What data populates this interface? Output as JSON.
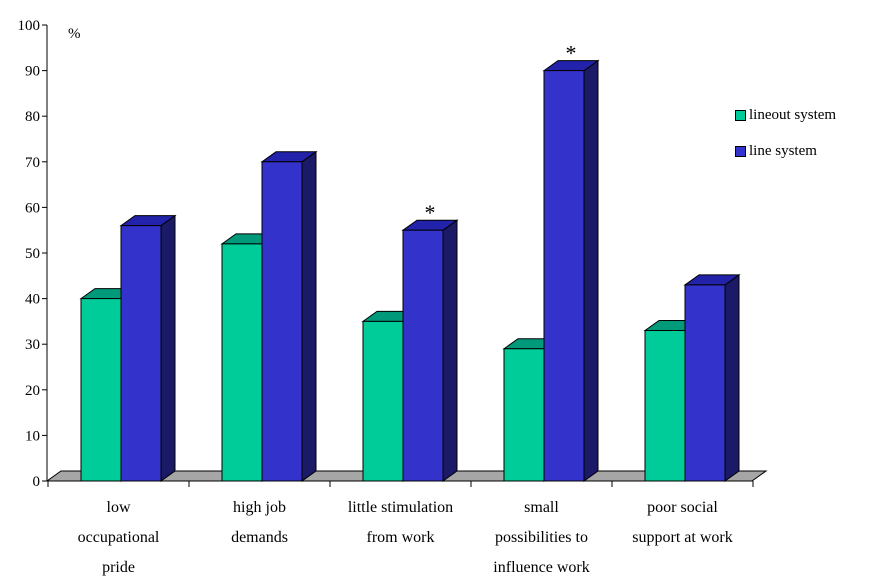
{
  "chart_data": {
    "type": "bar",
    "title": "",
    "ylabel": "%",
    "xlabel": "",
    "ylim": [
      0,
      100
    ],
    "yticks": [
      0,
      10,
      20,
      30,
      40,
      50,
      60,
      70,
      80,
      90,
      100
    ],
    "grid": false,
    "legend_position": "right",
    "categories": [
      [
        "low",
        "occupational",
        "pride"
      ],
      [
        "high job",
        "demands"
      ],
      [
        "little stimulation",
        "from work"
      ],
      [
        "small",
        "possibilities to",
        "influence work"
      ],
      [
        "poor social",
        "support at work"
      ]
    ],
    "series": [
      {
        "name": "lineout system",
        "color": "#00cc99",
        "values": [
          40,
          52,
          35,
          29,
          33
        ]
      },
      {
        "name": "line system",
        "color": "#3333cc",
        "values": [
          56,
          70,
          55,
          90,
          43
        ]
      }
    ],
    "annotations": [
      {
        "category_index": 2,
        "series_index": 1,
        "text": "*"
      },
      {
        "category_index": 3,
        "series_index": 1,
        "text": "*"
      }
    ]
  }
}
